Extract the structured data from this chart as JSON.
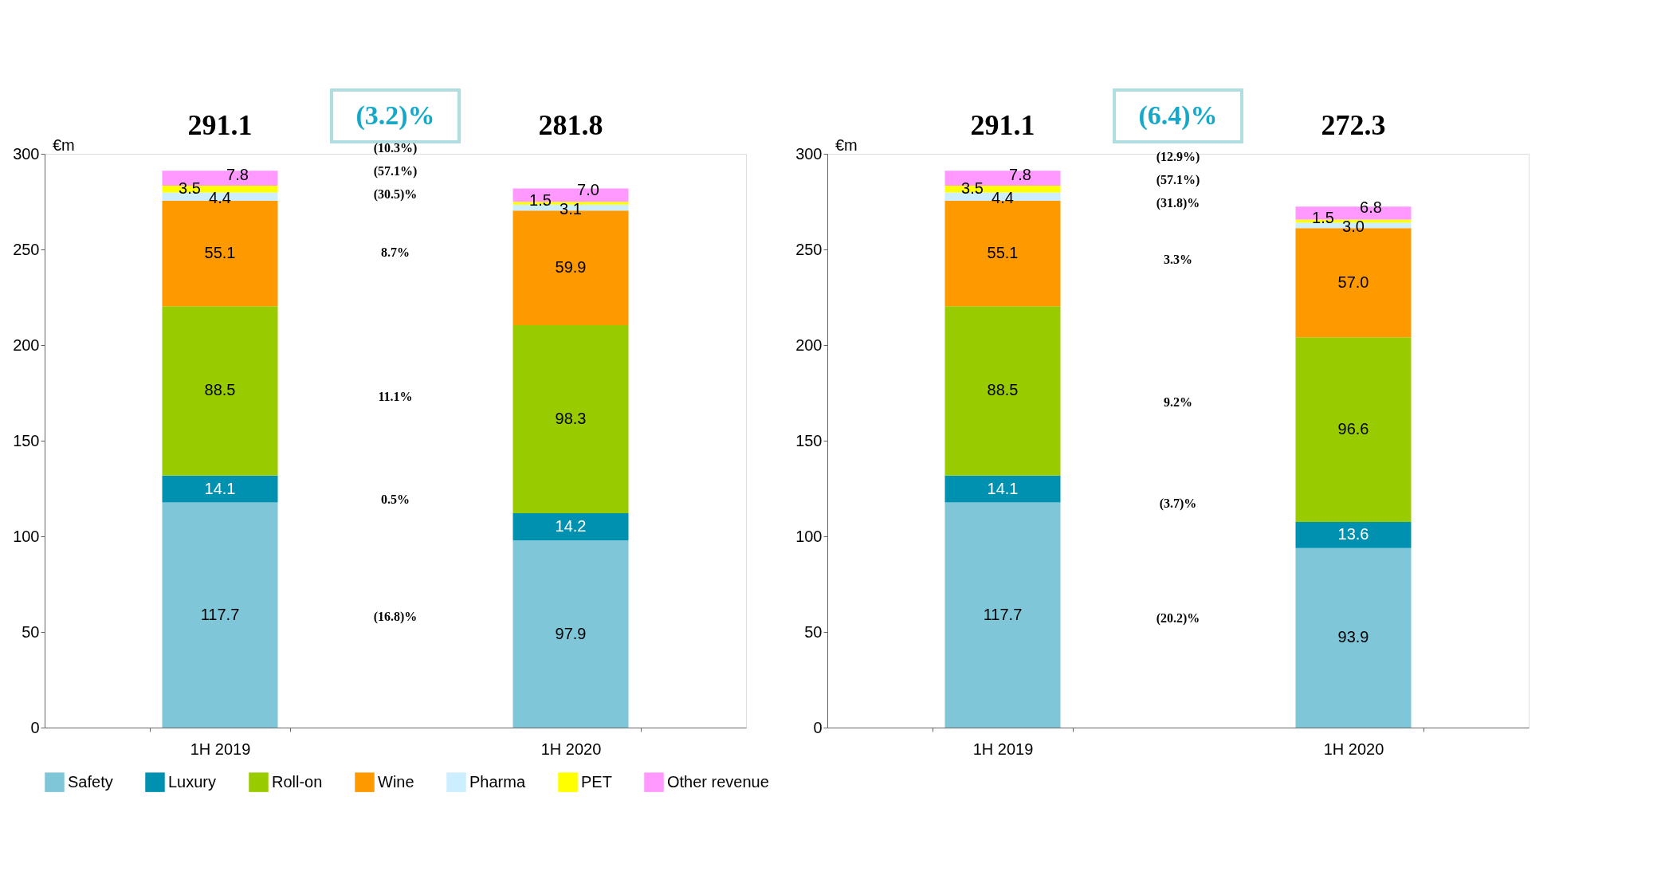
{
  "chart_data": [
    {
      "type": "bar",
      "title": "(3.2)%",
      "ylabel": "€m",
      "stacked": true,
      "categories": [
        "1H 2019",
        "1H 2020"
      ],
      "series": [
        {
          "name": "Safety",
          "color": "#7fc6d9",
          "values": [
            117.7,
            97.9
          ],
          "value_labels": [
            "117.7",
            "97.9"
          ]
        },
        {
          "name": "Luxury",
          "color": "#0090b0",
          "values": [
            14.1,
            14.2
          ],
          "value_labels": [
            "14.1",
            "14.2"
          ]
        },
        {
          "name": "Roll-on",
          "color": "#99cc00",
          "values": [
            88.5,
            98.3
          ],
          "value_labels": [
            "88.5",
            "98.3"
          ]
        },
        {
          "name": "Wine",
          "color": "#ff9900",
          "values": [
            55.1,
            59.9
          ],
          "value_labels": [
            "55.1",
            "59.9"
          ]
        },
        {
          "name": "Pharma",
          "color": "#cceeff",
          "values": [
            4.4,
            3.1
          ],
          "value_labels": [
            "4.4",
            "3.1"
          ]
        },
        {
          "name": "PET",
          "color": "#ffff00",
          "values": [
            3.5,
            1.5
          ],
          "value_labels": [
            "3.5",
            "1.5"
          ]
        },
        {
          "name": "Other revenue",
          "color": "#ff99ff",
          "values": [
            7.8,
            7.0
          ],
          "value_labels": [
            "7.8",
            "7.0"
          ]
        }
      ],
      "totals": [
        "291.1",
        "281.8"
      ],
      "annotations": [
        "(16.8)%",
        "0.5%",
        "11.1%",
        "8.7%",
        "(30.5)%",
        "(57.1%)",
        "(10.3%)"
      ],
      "ylim": [
        0,
        300
      ],
      "yticks": [
        0,
        50,
        100,
        150,
        200,
        250,
        300
      ],
      "grid": false,
      "legend": "bottom"
    },
    {
      "type": "bar",
      "title": "(6.4)%",
      "ylabel": "€m",
      "stacked": true,
      "categories": [
        "1H 2019",
        "1H 2020"
      ],
      "series": [
        {
          "name": "Safety",
          "color": "#7fc6d9",
          "values": [
            117.7,
            93.9
          ],
          "value_labels": [
            "117.7",
            "93.9"
          ]
        },
        {
          "name": "Luxury",
          "color": "#0090b0",
          "values": [
            14.1,
            13.6
          ],
          "value_labels": [
            "14.1",
            "13.6"
          ]
        },
        {
          "name": "Roll-on",
          "color": "#99cc00",
          "values": [
            88.5,
            96.6
          ],
          "value_labels": [
            "88.5",
            "96.6"
          ]
        },
        {
          "name": "Wine",
          "color": "#ff9900",
          "values": [
            55.1,
            57.0
          ],
          "value_labels": [
            "55.1",
            "57.0"
          ]
        },
        {
          "name": "Pharma",
          "color": "#cceeff",
          "values": [
            4.4,
            3.0
          ],
          "value_labels": [
            "4.4",
            "3.0"
          ]
        },
        {
          "name": "PET",
          "color": "#ffff00",
          "values": [
            3.5,
            1.5
          ],
          "value_labels": [
            "3.5",
            "1.5"
          ]
        },
        {
          "name": "Other revenue",
          "color": "#ff99ff",
          "values": [
            7.8,
            6.8
          ],
          "value_labels": [
            "7.8",
            "6.8"
          ]
        }
      ],
      "totals": [
        "291.1",
        "272.3"
      ],
      "annotations": [
        "(20.2)%",
        "(3.7)%",
        "9.2%",
        "3.3%",
        "(31.8)%",
        "(57.1%)",
        "(12.9%)"
      ],
      "ylim": [
        0,
        300
      ],
      "yticks": [
        0,
        50,
        100,
        150,
        200,
        250,
        300
      ],
      "grid": false,
      "legend": "bottom"
    }
  ]
}
